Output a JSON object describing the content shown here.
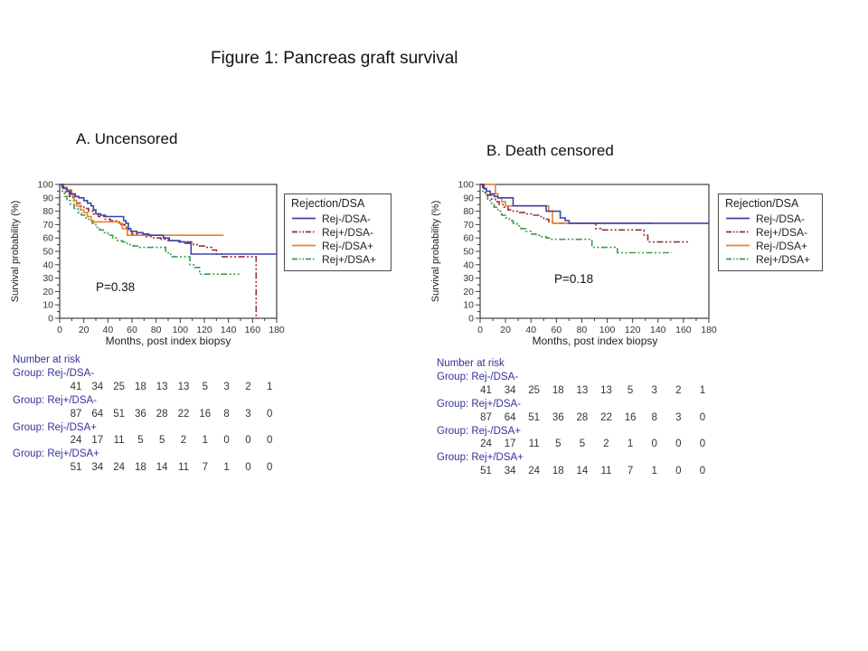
{
  "title": "Figure 1: Pancreas graft survival",
  "text_colors": {
    "risk_table": "#333399",
    "numbers": "#333333",
    "axis": "#3c3c3c"
  },
  "chart_data": [
    {
      "type": "line",
      "subtype": "kaplan-meier",
      "title": "A. Uncensored",
      "p_value": "P=0.38",
      "xlabel": "Months, post index biopsy",
      "ylabel": "Survival probability (%)",
      "xlim": [
        0,
        180
      ],
      "ylim": [
        0,
        100
      ],
      "xtick_step": 20,
      "ytick_step": 10,
      "legend_title": "Rejection/DSA",
      "legend_position": "right",
      "series": [
        {
          "name": "Rej-/DSA-",
          "color": "#3b43a6",
          "style": "solid",
          "steps": [
            [
              0,
              100
            ],
            [
              3,
              97
            ],
            [
              6,
              95
            ],
            [
              9,
              93
            ],
            [
              13,
              91
            ],
            [
              16,
              90
            ],
            [
              20,
              88
            ],
            [
              23,
              86
            ],
            [
              26,
              84
            ],
            [
              28,
              81
            ],
            [
              30,
              78
            ],
            [
              34,
              77
            ],
            [
              38,
              76
            ],
            [
              51,
              76
            ],
            [
              53,
              73
            ],
            [
              55,
              71
            ],
            [
              57,
              67
            ],
            [
              59,
              65
            ],
            [
              64,
              64
            ],
            [
              69,
              63
            ],
            [
              74,
              62
            ],
            [
              86,
              60
            ],
            [
              91,
              58
            ],
            [
              100,
              57
            ],
            [
              104,
              56
            ],
            [
              109,
              48
            ],
            [
              180,
              48
            ]
          ]
        },
        {
          "name": "Rej+/DSA-",
          "color": "#943134",
          "style": "dashdotdot",
          "steps": [
            [
              0,
              100
            ],
            [
              2,
              97
            ],
            [
              5,
              94
            ],
            [
              8,
              91
            ],
            [
              11,
              88
            ],
            [
              14,
              86
            ],
            [
              17,
              84
            ],
            [
              20,
              82
            ],
            [
              24,
              80
            ],
            [
              28,
              78
            ],
            [
              32,
              76
            ],
            [
              37,
              74
            ],
            [
              42,
              73
            ],
            [
              47,
              72
            ],
            [
              51,
              70
            ],
            [
              54,
              68
            ],
            [
              57,
              65
            ],
            [
              60,
              63
            ],
            [
              66,
              62
            ],
            [
              72,
              61
            ],
            [
              78,
              60
            ],
            [
              84,
              59
            ],
            [
              90,
              58
            ],
            [
              97,
              57
            ],
            [
              108,
              57
            ],
            [
              111,
              55
            ],
            [
              116,
              54
            ],
            [
              121,
              53
            ],
            [
              126,
              51
            ],
            [
              130,
              48
            ],
            [
              134,
              46
            ],
            [
              163,
              46
            ],
            [
              163,
              0
            ],
            [
              164,
              0
            ]
          ]
        },
        {
          "name": "Rej-/DSA+",
          "color": "#e8812d",
          "style": "solid",
          "steps": [
            [
              0,
              100
            ],
            [
              3,
              98
            ],
            [
              6,
              96
            ],
            [
              9,
              96
            ],
            [
              10,
              92
            ],
            [
              12,
              88
            ],
            [
              14,
              84
            ],
            [
              17,
              81
            ],
            [
              20,
              79
            ],
            [
              23,
              76
            ],
            [
              26,
              73
            ],
            [
              28,
              72
            ],
            [
              46,
              72
            ],
            [
              49,
              71
            ],
            [
              52,
              67
            ],
            [
              56,
              62
            ],
            [
              136,
              62
            ]
          ]
        },
        {
          "name": "Rej+/DSA+",
          "color": "#3f9b4c",
          "style": "dashdotdot",
          "steps": [
            [
              0,
              100
            ],
            [
              2,
              95
            ],
            [
              4,
              91
            ],
            [
              6,
              88
            ],
            [
              9,
              85
            ],
            [
              12,
              82
            ],
            [
              15,
              79
            ],
            [
              18,
              77
            ],
            [
              21,
              75
            ],
            [
              24,
              73
            ],
            [
              27,
              71
            ],
            [
              30,
              68
            ],
            [
              33,
              66
            ],
            [
              36,
              64
            ],
            [
              40,
              62
            ],
            [
              44,
              60
            ],
            [
              48,
              58
            ],
            [
              52,
              57
            ],
            [
              56,
              55
            ],
            [
              61,
              54
            ],
            [
              66,
              53
            ],
            [
              85,
              53
            ],
            [
              88,
              49
            ],
            [
              92,
              46
            ],
            [
              105,
              46
            ],
            [
              108,
              40
            ],
            [
              112,
              38
            ],
            [
              116,
              33
            ],
            [
              149,
              33
            ]
          ]
        }
      ],
      "number_at_risk": {
        "header": "Number at risk",
        "groups": [
          {
            "label": "Group: Rej-/DSA-",
            "counts": [
              41,
              34,
              25,
              18,
              13,
              13,
              5,
              3,
              2,
              1
            ]
          },
          {
            "label": "Group: Rej+/DSA-",
            "counts": [
              87,
              64,
              51,
              36,
              28,
              22,
              16,
              8,
              3,
              0
            ]
          },
          {
            "label": "Group: Rej-/DSA+",
            "counts": [
              24,
              17,
              11,
              5,
              5,
              2,
              1,
              0,
              0,
              0
            ]
          },
          {
            "label": "Group: Rej+/DSA+",
            "counts": [
              51,
              34,
              24,
              18,
              14,
              11,
              7,
              1,
              0,
              0
            ]
          }
        ]
      }
    },
    {
      "type": "line",
      "subtype": "kaplan-meier",
      "title": "B. Death censored",
      "p_value": "P=0.18",
      "xlabel": "Months, post index biopsy",
      "ylabel": "Survival probability (%)",
      "xlim": [
        0,
        180
      ],
      "ylim": [
        0,
        100
      ],
      "xtick_step": 20,
      "ytick_step": 10,
      "legend_title": "Rejection/DSA",
      "legend_position": "right",
      "series": [
        {
          "name": "Rej-/DSA-",
          "color": "#3b43a6",
          "style": "solid",
          "steps": [
            [
              0,
              100
            ],
            [
              3,
              97
            ],
            [
              5,
              95
            ],
            [
              8,
              93
            ],
            [
              11,
              91
            ],
            [
              14,
              90
            ],
            [
              24,
              90
            ],
            [
              26,
              84
            ],
            [
              50,
              84
            ],
            [
              52,
              80
            ],
            [
              61,
              80
            ],
            [
              63,
              75
            ],
            [
              67,
              73
            ],
            [
              70,
              71
            ],
            [
              180,
              71
            ]
          ]
        },
        {
          "name": "Rej+/DSA-",
          "color": "#943134",
          "style": "dashdotdot",
          "steps": [
            [
              0,
              100
            ],
            [
              2,
              97
            ],
            [
              4,
              94
            ],
            [
              6,
              92
            ],
            [
              9,
              89
            ],
            [
              12,
              87
            ],
            [
              15,
              85
            ],
            [
              18,
              83
            ],
            [
              22,
              81
            ],
            [
              26,
              80
            ],
            [
              31,
              79
            ],
            [
              36,
              78
            ],
            [
              41,
              77
            ],
            [
              46,
              76
            ],
            [
              50,
              74
            ],
            [
              54,
              72
            ],
            [
              57,
              71
            ],
            [
              88,
              71
            ],
            [
              91,
              67
            ],
            [
              95,
              66
            ],
            [
              126,
              66
            ],
            [
              129,
              62
            ],
            [
              132,
              57
            ],
            [
              165,
              57
            ]
          ]
        },
        {
          "name": "Rej-/DSA+",
          "color": "#e8812d",
          "style": "solid",
          "steps": [
            [
              0,
              100
            ],
            [
              11,
              100
            ],
            [
              12,
              93
            ],
            [
              14,
              90
            ],
            [
              17,
              87
            ],
            [
              20,
              84
            ],
            [
              52,
              84
            ],
            [
              54,
              80
            ],
            [
              57,
              71
            ],
            [
              136,
              71
            ]
          ]
        },
        {
          "name": "Rej+/DSA+",
          "color": "#3f9b4c",
          "style": "dashdotdot",
          "steps": [
            [
              0,
              100
            ],
            [
              2,
              95
            ],
            [
              4,
              92
            ],
            [
              6,
              89
            ],
            [
              8,
              86
            ],
            [
              11,
              83
            ],
            [
              14,
              80
            ],
            [
              17,
              77
            ],
            [
              20,
              75
            ],
            [
              23,
              73
            ],
            [
              26,
              71
            ],
            [
              29,
              69
            ],
            [
              32,
              67
            ],
            [
              36,
              65
            ],
            [
              40,
              63
            ],
            [
              44,
              62
            ],
            [
              48,
              61
            ],
            [
              52,
              60
            ],
            [
              55,
              59
            ],
            [
              85,
              59
            ],
            [
              88,
              53
            ],
            [
              105,
              53
            ],
            [
              108,
              49
            ],
            [
              151,
              49
            ]
          ]
        }
      ],
      "number_at_risk": {
        "header": "Number at risk",
        "groups": [
          {
            "label": "Group: Rej-/DSA-",
            "counts": [
              41,
              34,
              25,
              18,
              13,
              13,
              5,
              3,
              2,
              1
            ]
          },
          {
            "label": "Group: Rej+/DSA-",
            "counts": [
              87,
              64,
              51,
              36,
              28,
              22,
              16,
              8,
              3,
              0
            ]
          },
          {
            "label": "Group: Rej-/DSA+",
            "counts": [
              24,
              17,
              11,
              5,
              5,
              2,
              1,
              0,
              0,
              0
            ]
          },
          {
            "label": "Group: Rej+/DSA+",
            "counts": [
              51,
              34,
              24,
              18,
              14,
              11,
              7,
              1,
              0,
              0
            ]
          }
        ]
      }
    }
  ]
}
